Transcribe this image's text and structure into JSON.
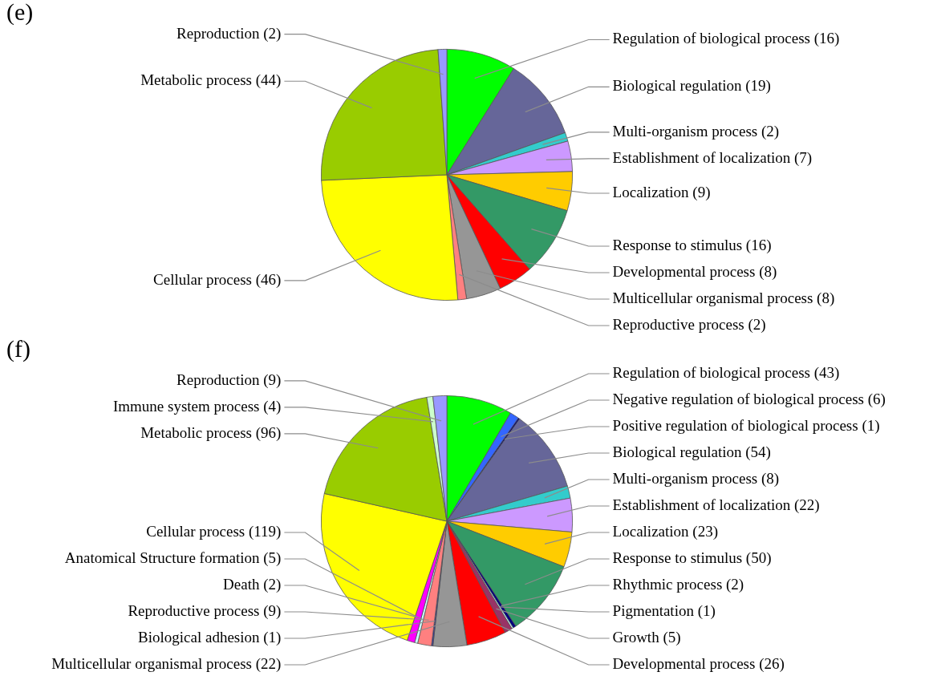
{
  "chart_data": [
    {
      "type": "pie",
      "title": "(e)",
      "categories": [
        "Regulation of biological process (16)",
        "Biological regulation (19)",
        "Multi-organism process (2)",
        "Establishment of localization (7)",
        "Localization (9)",
        "Response to stimulus (16)",
        "Developmental process (8)",
        "Multicellular organismal process (8)",
        "Reproductive process (2)",
        "Cellular process (46)",
        "Metabolic process (44)",
        "Reproduction (2)"
      ],
      "values": [
        16,
        19,
        2,
        7,
        9,
        16,
        8,
        8,
        2,
        46,
        44,
        2
      ],
      "colors": [
        "#00ff00",
        "#666699",
        "#33cccc",
        "#cc99ff",
        "#ffcc00",
        "#339966",
        "#ff0000",
        "#969696",
        "#ff8080",
        "#ffff00",
        "#99cc00",
        "#9999ff"
      ]
    },
    {
      "type": "pie",
      "title": "(f)",
      "categories": [
        "Regulation of biological process (43)",
        "Negative regulation of biological process (6)",
        "Positive regulation of biological process (1)",
        "Biological regulation (54)",
        "Multi-organism process (8)",
        "Establishment of localization (22)",
        "Localization (23)",
        "Response to stimulus (50)",
        "Rhythmic process (2)",
        "Pigmentation (1)",
        "Growth (5)",
        "Developmental process (26)",
        "Multicellular organismal process (22)",
        "Biological adhesion (1)",
        "Reproductive process (9)",
        "Death (2)",
        "Anatomical Structure formation (5)",
        "Cellular process (119)",
        "Metabolic process (96)",
        "Immune system process (4)",
        "Reproduction (9)"
      ],
      "values": [
        43,
        6,
        1,
        54,
        8,
        22,
        23,
        50,
        2,
        1,
        5,
        26,
        22,
        1,
        9,
        2,
        5,
        119,
        96,
        4,
        9
      ],
      "colors": [
        "#00ff00",
        "#3366ff",
        "#000080",
        "#666699",
        "#33cccc",
        "#cc99ff",
        "#ffcc00",
        "#339966",
        "#000080",
        "#ccffff",
        "#993366",
        "#ff0000",
        "#969696",
        "#333399",
        "#ff8080",
        "#ccffff",
        "#ff00ff",
        "#ffff00",
        "#99cc00",
        "#ccffcc",
        "#9999ff"
      ]
    }
  ]
}
